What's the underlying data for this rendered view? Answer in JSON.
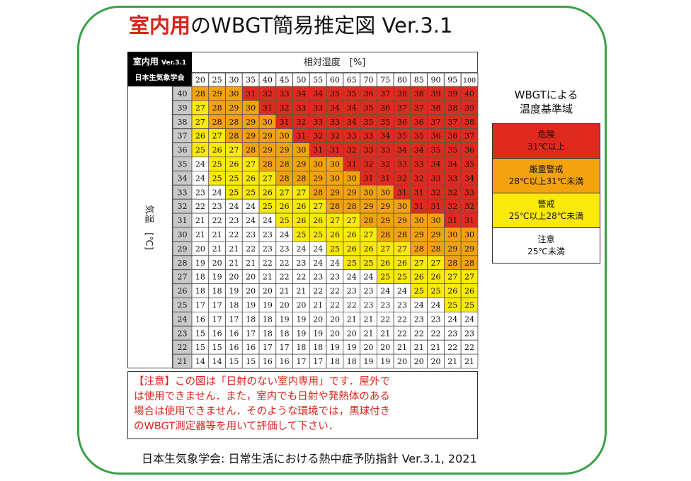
{
  "title": {
    "highlight": "室内用",
    "rest": "のWBGT簡易推定図 Ver.3.1"
  },
  "badge": {
    "line1_main": "室内用",
    "line1_version": "Ver.3.1",
    "line2": "日本生気象学会"
  },
  "humidity_header": "相対湿度　[%]",
  "temperature_label": "気温　[℃]",
  "legend": {
    "title_lines": [
      "WBGTによる",
      "温度基準域"
    ],
    "items": [
      {
        "lines": [
          "危険",
          "31℃以上"
        ],
        "color": "#e12a1e"
      },
      {
        "lines": [
          "厳重警戒",
          "28℃以上31℃未満"
        ],
        "color": "#f3a30e"
      },
      {
        "lines": [
          "警戒",
          "25℃以上28℃未満"
        ],
        "color": "#fbea09"
      },
      {
        "lines": [
          "注意",
          "25℃未満"
        ],
        "color": "#ffffff"
      }
    ]
  },
  "note_lines": [
    "【注意】この図は「日射のない室内専用」です．屋外で",
    "は使用できません．また，室内でも日射や発熱体のある",
    "場合は使用できません．そのような環境では，黒球付き",
    "のWBGT測定器等を用いて評価して下さい．"
  ],
  "citation": "日本生気象学会: 日常生活における熱中症予防指針 Ver.3.1, 2021",
  "chart_data": {
    "type": "heatmap",
    "title": "室内用のWBGT簡易推定図 Ver.3.1",
    "xlabel": "相対湿度　[%]",
    "ylabel": "気温　[℃]",
    "x": [
      20,
      25,
      30,
      35,
      40,
      45,
      50,
      55,
      60,
      65,
      70,
      75,
      80,
      85,
      90,
      95,
      100
    ],
    "y": [
      40,
      39,
      38,
      37,
      36,
      35,
      34,
      33,
      32,
      31,
      30,
      29,
      28,
      27,
      26,
      25,
      24,
      23,
      22,
      21
    ],
    "thresholds": [
      25,
      28,
      31
    ],
    "colors": [
      "#ffffff",
      "#fbea09",
      "#f3a30e",
      "#e12a1e"
    ],
    "values": [
      [
        28,
        29,
        30,
        31,
        32,
        33,
        34,
        34,
        35,
        35,
        36,
        37,
        38,
        38,
        39,
        39,
        40
      ],
      [
        27,
        28,
        29,
        30,
        31,
        32,
        33,
        33,
        34,
        34,
        35,
        36,
        37,
        37,
        38,
        38,
        39
      ],
      [
        27,
        28,
        28,
        29,
        30,
        31,
        32,
        33,
        33,
        34,
        35,
        35,
        36,
        36,
        37,
        37,
        38
      ],
      [
        26,
        27,
        28,
        29,
        29,
        30,
        31,
        32,
        32,
        33,
        33,
        34,
        35,
        35,
        36,
        36,
        37
      ],
      [
        25,
        26,
        27,
        28,
        29,
        29,
        30,
        31,
        31,
        32,
        33,
        33,
        34,
        34,
        35,
        35,
        36
      ],
      [
        24,
        25,
        26,
        27,
        28,
        28,
        29,
        30,
        30,
        31,
        32,
        32,
        33,
        33,
        34,
        34,
        35
      ],
      [
        24,
        25,
        25,
        26,
        27,
        28,
        28,
        29,
        30,
        30,
        31,
        31,
        32,
        32,
        33,
        33,
        34
      ],
      [
        23,
        24,
        25,
        25,
        26,
        27,
        27,
        28,
        29,
        29,
        30,
        30,
        31,
        31,
        32,
        32,
        33
      ],
      [
        22,
        23,
        24,
        24,
        25,
        26,
        26,
        27,
        28,
        28,
        29,
        29,
        30,
        31,
        31,
        32,
        32
      ],
      [
        21,
        22,
        23,
        24,
        24,
        25,
        26,
        26,
        27,
        27,
        28,
        29,
        29,
        30,
        30,
        31,
        31
      ],
      [
        21,
        21,
        22,
        23,
        23,
        24,
        25,
        25,
        26,
        26,
        27,
        28,
        28,
        29,
        29,
        30,
        30
      ],
      [
        20,
        21,
        21,
        22,
        23,
        23,
        24,
        24,
        25,
        26,
        26,
        27,
        27,
        28,
        28,
        29,
        29
      ],
      [
        19,
        20,
        21,
        21,
        22,
        22,
        23,
        24,
        24,
        25,
        25,
        26,
        26,
        27,
        27,
        28,
        28
      ],
      [
        18,
        19,
        20,
        20,
        21,
        22,
        22,
        23,
        23,
        24,
        24,
        25,
        25,
        26,
        26,
        27,
        27
      ],
      [
        18,
        18,
        19,
        20,
        20,
        21,
        21,
        22,
        22,
        23,
        23,
        24,
        24,
        25,
        25,
        26,
        26
      ],
      [
        17,
        17,
        18,
        19,
        19,
        20,
        20,
        21,
        22,
        22,
        23,
        23,
        23,
        24,
        24,
        25,
        25
      ],
      [
        16,
        17,
        17,
        18,
        18,
        19,
        19,
        20,
        20,
        21,
        21,
        22,
        22,
        23,
        23,
        24,
        24
      ],
      [
        15,
        16,
        16,
        17,
        18,
        18,
        19,
        19,
        20,
        20,
        21,
        21,
        22,
        22,
        22,
        23,
        23
      ],
      [
        15,
        15,
        16,
        16,
        17,
        17,
        18,
        18,
        19,
        19,
        20,
        20,
        21,
        21,
        21,
        22,
        22
      ],
      [
        14,
        14,
        15,
        15,
        16,
        16,
        17,
        17,
        18,
        18,
        19,
        19,
        20,
        20,
        20,
        21,
        21
      ]
    ]
  }
}
